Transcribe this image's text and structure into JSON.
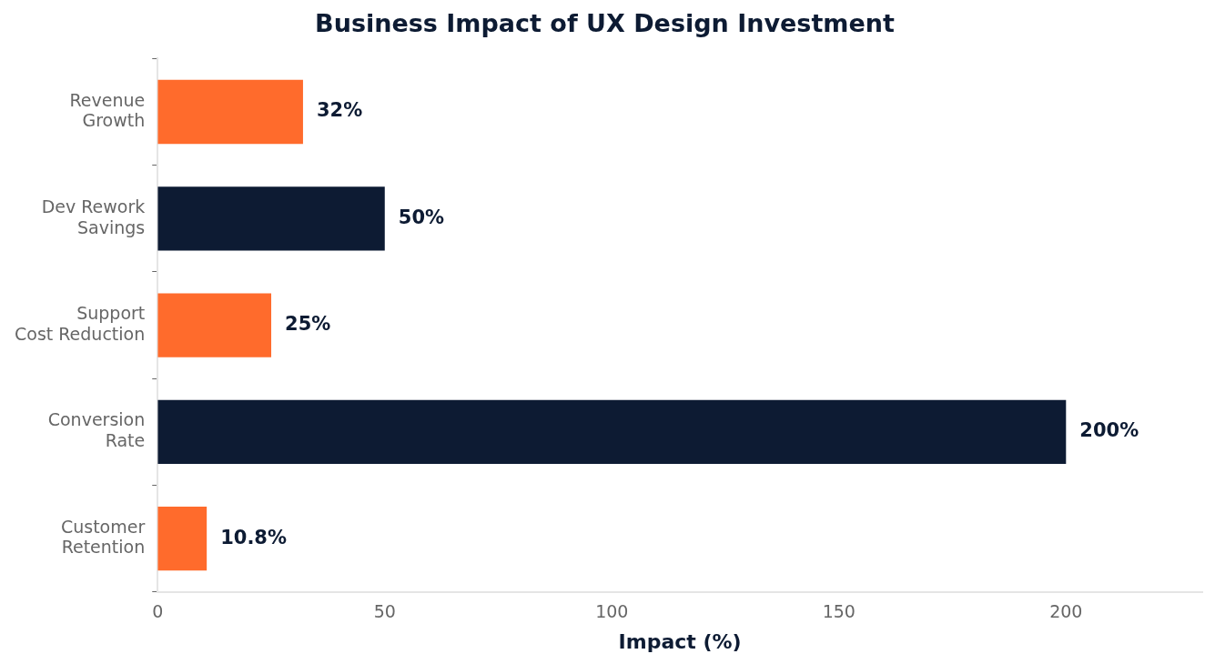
{
  "chart_data": {
    "type": "bar",
    "orientation": "horizontal",
    "title": "Business Impact of UX Design Investment",
    "xlabel": "Impact (%)",
    "categories": [
      "Revenue\nGrowth",
      "Dev Rework\nSavings",
      "Support\nCost Reduction",
      "Conversion\nRate",
      "Customer\nRetention"
    ],
    "values": [
      32,
      50,
      25,
      200,
      10.8
    ],
    "colors": [
      "#ff6b2c",
      "#0d1b33",
      "#ff6b2c",
      "#0d1b33",
      "#ff6b2c"
    ],
    "value_labels": [
      "32%",
      "50%",
      "25%",
      "200%",
      "10.8%"
    ],
    "xlim": [
      0,
      230
    ],
    "xticks": [
      0,
      50,
      100,
      150,
      200
    ],
    "grid": false,
    "legend": false
  }
}
